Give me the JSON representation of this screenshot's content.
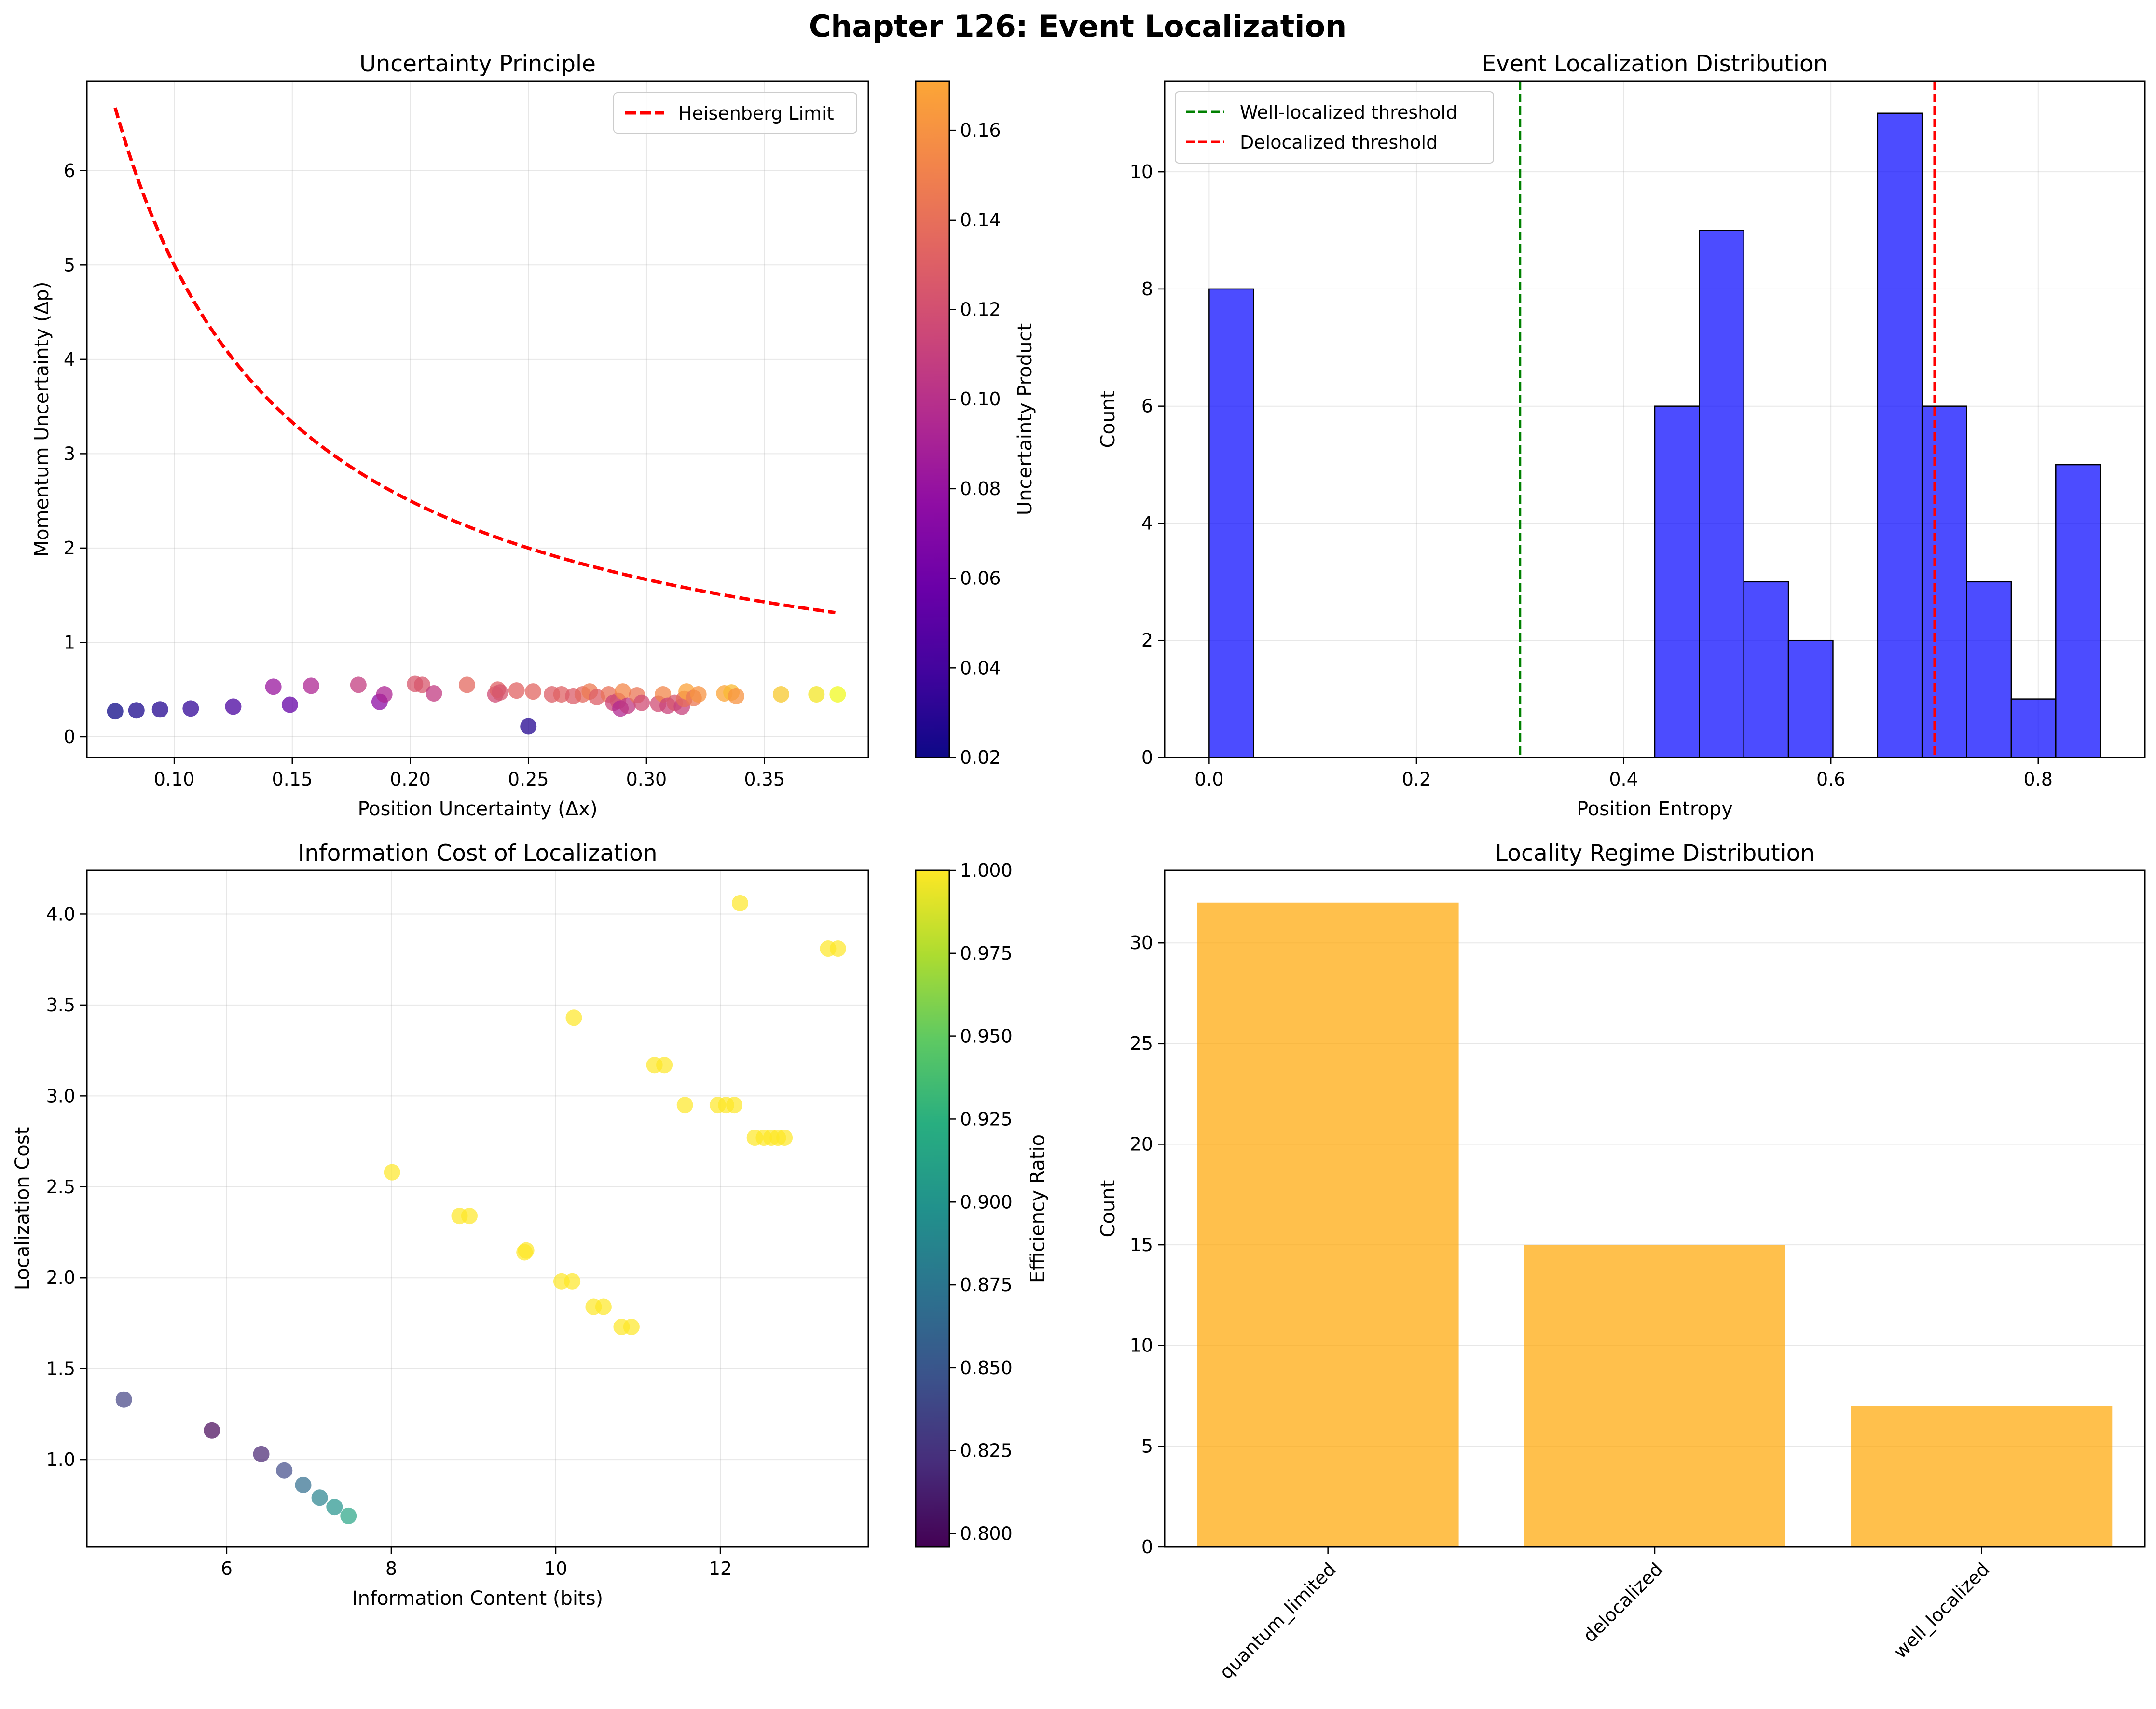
{
  "figure": {
    "suptitle": "Chapter 126: Event Localization"
  },
  "chart_data": [
    {
      "id": "uncertainty",
      "type": "scatter",
      "title": "Uncertainty Principle",
      "xlabel": "Position Uncertainty (Δx)",
      "ylabel": "Momentum Uncertainty (Δp)",
      "xlim": [
        0.063,
        0.394
      ],
      "ylim": [
        -0.22,
        6.95
      ],
      "xticks": [
        0.1,
        0.15,
        0.2,
        0.25,
        0.3,
        0.35
      ],
      "xtick_labels": [
        "0.10",
        "0.15",
        "0.20",
        "0.25",
        "0.30",
        "0.35"
      ],
      "yticks": [
        0,
        1,
        2,
        3,
        4,
        5,
        6
      ],
      "ytick_labels": [
        "0",
        "1",
        "2",
        "3",
        "4",
        "5",
        "6"
      ],
      "grid": true,
      "line": {
        "name": "Heisenberg Limit",
        "formula": "0.5/x",
        "x_range": [
          0.075,
          0.38
        ],
        "color": "#ff0000"
      },
      "legend": {
        "entries": [
          "Heisenberg Limit"
        ],
        "position": "upper right"
      },
      "colorbar": {
        "label": "Uncertainty Product",
        "colormap": "plasma",
        "range": [
          0.02,
          0.171
        ],
        "ticks": [
          0.02,
          0.04,
          0.06,
          0.08,
          0.1,
          0.12,
          0.14,
          0.16
        ],
        "tick_labels": [
          "0.02",
          "0.04",
          "0.06",
          "0.08",
          "0.10",
          "0.12",
          "0.14",
          "0.16"
        ]
      },
      "points": [
        {
          "x": 0.075,
          "y": 0.27,
          "c": 0.02
        },
        {
          "x": 0.084,
          "y": 0.28,
          "c": 0.024
        },
        {
          "x": 0.094,
          "y": 0.29,
          "c": 0.027
        },
        {
          "x": 0.107,
          "y": 0.3,
          "c": 0.032
        },
        {
          "x": 0.125,
          "y": 0.32,
          "c": 0.04
        },
        {
          "x": 0.142,
          "y": 0.53,
          "c": 0.075
        },
        {
          "x": 0.149,
          "y": 0.34,
          "c": 0.051
        },
        {
          "x": 0.158,
          "y": 0.54,
          "c": 0.085
        },
        {
          "x": 0.178,
          "y": 0.55,
          "c": 0.098
        },
        {
          "x": 0.187,
          "y": 0.37,
          "c": 0.069
        },
        {
          "x": 0.189,
          "y": 0.45,
          "c": 0.085
        },
        {
          "x": 0.202,
          "y": 0.56,
          "c": 0.113
        },
        {
          "x": 0.205,
          "y": 0.55,
          "c": 0.113
        },
        {
          "x": 0.21,
          "y": 0.46,
          "c": 0.097
        },
        {
          "x": 0.224,
          "y": 0.55,
          "c": 0.123
        },
        {
          "x": 0.236,
          "y": 0.45,
          "c": 0.106
        },
        {
          "x": 0.237,
          "y": 0.5,
          "c": 0.119
        },
        {
          "x": 0.238,
          "y": 0.47,
          "c": 0.112
        },
        {
          "x": 0.245,
          "y": 0.49,
          "c": 0.12
        },
        {
          "x": 0.25,
          "y": 0.11,
          "c": 0.027
        },
        {
          "x": 0.252,
          "y": 0.48,
          "c": 0.121
        },
        {
          "x": 0.26,
          "y": 0.45,
          "c": 0.117
        },
        {
          "x": 0.264,
          "y": 0.45,
          "c": 0.119
        },
        {
          "x": 0.269,
          "y": 0.43,
          "c": 0.116
        },
        {
          "x": 0.273,
          "y": 0.45,
          "c": 0.123
        },
        {
          "x": 0.276,
          "y": 0.48,
          "c": 0.132
        },
        {
          "x": 0.279,
          "y": 0.42,
          "c": 0.117
        },
        {
          "x": 0.284,
          "y": 0.45,
          "c": 0.128
        },
        {
          "x": 0.286,
          "y": 0.36,
          "c": 0.103
        },
        {
          "x": 0.288,
          "y": 0.38,
          "c": 0.109
        },
        {
          "x": 0.289,
          "y": 0.3,
          "c": 0.087
        },
        {
          "x": 0.29,
          "y": 0.48,
          "c": 0.139
        },
        {
          "x": 0.292,
          "y": 0.33,
          "c": 0.096
        },
        {
          "x": 0.296,
          "y": 0.44,
          "c": 0.13
        },
        {
          "x": 0.298,
          "y": 0.36,
          "c": 0.107
        },
        {
          "x": 0.305,
          "y": 0.35,
          "c": 0.107
        },
        {
          "x": 0.307,
          "y": 0.45,
          "c": 0.138
        },
        {
          "x": 0.309,
          "y": 0.33,
          "c": 0.102
        },
        {
          "x": 0.312,
          "y": 0.36,
          "c": 0.112
        },
        {
          "x": 0.315,
          "y": 0.32,
          "c": 0.101
        },
        {
          "x": 0.316,
          "y": 0.4,
          "c": 0.126
        },
        {
          "x": 0.317,
          "y": 0.48,
          "c": 0.152
        },
        {
          "x": 0.32,
          "y": 0.41,
          "c": 0.131
        },
        {
          "x": 0.322,
          "y": 0.45,
          "c": 0.145
        },
        {
          "x": 0.333,
          "y": 0.46,
          "c": 0.153
        },
        {
          "x": 0.336,
          "y": 0.47,
          "c": 0.158
        },
        {
          "x": 0.338,
          "y": 0.43,
          "c": 0.145
        },
        {
          "x": 0.357,
          "y": 0.45,
          "c": 0.161
        },
        {
          "x": 0.372,
          "y": 0.45,
          "c": 0.167
        },
        {
          "x": 0.381,
          "y": 0.45,
          "c": 0.171
        }
      ]
    },
    {
      "id": "histogram",
      "type": "bar",
      "title": "Event Localization Distribution",
      "xlabel": "Position Entropy",
      "ylabel": "Count",
      "xlim": [
        -0.043,
        0.903
      ],
      "ylim": [
        0,
        11.55
      ],
      "xticks": [
        0.0,
        0.2,
        0.4,
        0.6,
        0.8
      ],
      "xtick_labels": [
        "0.0",
        "0.2",
        "0.4",
        "0.6",
        "0.8"
      ],
      "yticks": [
        0,
        2,
        4,
        6,
        8,
        10
      ],
      "ytick_labels": [
        "0",
        "2",
        "4",
        "6",
        "8",
        "10"
      ],
      "grid": true,
      "bar_color": "#0000ff",
      "bins": [
        {
          "start": 0.0,
          "end": 0.043,
          "count": 8
        },
        {
          "start": 0.43,
          "end": 0.473,
          "count": 6
        },
        {
          "start": 0.473,
          "end": 0.516,
          "count": 9
        },
        {
          "start": 0.516,
          "end": 0.559,
          "count": 3
        },
        {
          "start": 0.559,
          "end": 0.602,
          "count": 2
        },
        {
          "start": 0.645,
          "end": 0.688,
          "count": 11
        },
        {
          "start": 0.688,
          "end": 0.731,
          "count": 6
        },
        {
          "start": 0.731,
          "end": 0.774,
          "count": 3
        },
        {
          "start": 0.774,
          "end": 0.817,
          "count": 1
        },
        {
          "start": 0.817,
          "end": 0.86,
          "count": 5
        }
      ],
      "thresholds": [
        {
          "name": "Well-localized threshold",
          "x": 0.3,
          "color": "#008000"
        },
        {
          "name": "Delocalized threshold",
          "x": 0.7,
          "color": "#ff0000"
        }
      ],
      "legend": {
        "entries": [
          "Well-localized threshold",
          "Delocalized threshold"
        ],
        "position": "upper left"
      }
    },
    {
      "id": "infocost",
      "type": "scatter",
      "title": "Information Cost of Localization",
      "xlabel": "Information Content (bits)",
      "ylabel": "Localization Cost",
      "xlim": [
        4.3,
        13.8
      ],
      "ylim": [
        0.52,
        4.24
      ],
      "xticks": [
        6,
        8,
        10,
        12
      ],
      "xtick_labels": [
        "6",
        "8",
        "10",
        "12"
      ],
      "yticks": [
        1.0,
        1.5,
        2.0,
        2.5,
        3.0,
        3.5,
        4.0
      ],
      "ytick_labels": [
        "1.0",
        "1.5",
        "2.0",
        "2.5",
        "3.0",
        "3.5",
        "4.0"
      ],
      "grid": true,
      "colorbar": {
        "label": "Efficiency Ratio",
        "colormap": "viridis",
        "range": [
          0.796,
          1.0
        ],
        "ticks": [
          0.8,
          0.825,
          0.85,
          0.875,
          0.9,
          0.925,
          0.95,
          0.975,
          1.0
        ],
        "tick_labels": [
          "0.800",
          "0.825",
          "0.850",
          "0.875",
          "0.900",
          "0.925",
          "0.950",
          "0.975",
          "1.000"
        ]
      },
      "points": [
        {
          "x": 4.75,
          "y": 1.33,
          "c": 0.835
        },
        {
          "x": 5.82,
          "y": 1.16,
          "c": 0.798
        },
        {
          "x": 6.42,
          "y": 1.03,
          "c": 0.815
        },
        {
          "x": 6.7,
          "y": 0.94,
          "c": 0.84
        },
        {
          "x": 6.93,
          "y": 0.86,
          "c": 0.868
        },
        {
          "x": 7.13,
          "y": 0.79,
          "c": 0.885
        },
        {
          "x": 7.31,
          "y": 0.74,
          "c": 0.9
        },
        {
          "x": 7.48,
          "y": 0.69,
          "c": 0.915
        },
        {
          "x": 8.01,
          "y": 2.58,
          "c": 1.0
        },
        {
          "x": 8.83,
          "y": 2.34,
          "c": 1.0
        },
        {
          "x": 8.95,
          "y": 2.34,
          "c": 1.0
        },
        {
          "x": 9.62,
          "y": 2.14,
          "c": 1.0
        },
        {
          "x": 9.64,
          "y": 2.15,
          "c": 1.0
        },
        {
          "x": 10.07,
          "y": 1.98,
          "c": 1.0
        },
        {
          "x": 10.2,
          "y": 1.98,
          "c": 1.0
        },
        {
          "x": 10.22,
          "y": 3.43,
          "c": 1.0
        },
        {
          "x": 10.46,
          "y": 1.84,
          "c": 1.0
        },
        {
          "x": 10.58,
          "y": 1.84,
          "c": 1.0
        },
        {
          "x": 10.8,
          "y": 1.73,
          "c": 1.0
        },
        {
          "x": 10.92,
          "y": 1.73,
          "c": 1.0
        },
        {
          "x": 11.2,
          "y": 3.17,
          "c": 1.0
        },
        {
          "x": 11.32,
          "y": 3.17,
          "c": 1.0
        },
        {
          "x": 11.57,
          "y": 2.95,
          "c": 1.0
        },
        {
          "x": 11.97,
          "y": 2.95,
          "c": 1.0
        },
        {
          "x": 12.07,
          "y": 2.95,
          "c": 1.0
        },
        {
          "x": 12.17,
          "y": 2.95,
          "c": 1.0
        },
        {
          "x": 12.24,
          "y": 4.06,
          "c": 1.0
        },
        {
          "x": 12.42,
          "y": 2.77,
          "c": 1.0
        },
        {
          "x": 12.53,
          "y": 2.77,
          "c": 1.0
        },
        {
          "x": 12.62,
          "y": 2.77,
          "c": 1.0
        },
        {
          "x": 12.7,
          "y": 2.77,
          "c": 1.0
        },
        {
          "x": 12.78,
          "y": 2.77,
          "c": 1.0
        },
        {
          "x": 13.31,
          "y": 3.81,
          "c": 1.0
        },
        {
          "x": 13.43,
          "y": 3.81,
          "c": 1.0
        }
      ]
    },
    {
      "id": "regimes",
      "type": "bar",
      "title": "Locality Regime Distribution",
      "xlabel": "",
      "ylabel": "Count",
      "categories": [
        "quantum_limited",
        "delocalized",
        "well_localized"
      ],
      "values": [
        32,
        15,
        7
      ],
      "ylim": [
        0,
        33.6
      ],
      "yticks": [
        0,
        5,
        10,
        15,
        20,
        25,
        30
      ],
      "ytick_labels": [
        "0",
        "5",
        "10",
        "15",
        "20",
        "25",
        "30"
      ],
      "grid": true,
      "bar_color": "#ffa500"
    }
  ]
}
